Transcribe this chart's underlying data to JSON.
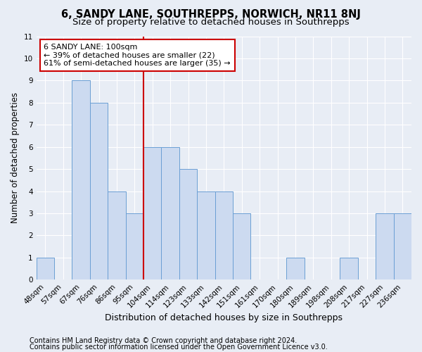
{
  "title": "6, SANDY LANE, SOUTHREPPS, NORWICH, NR11 8NJ",
  "subtitle": "Size of property relative to detached houses in Southrepps",
  "xlabel": "Distribution of detached houses by size in Southrepps",
  "ylabel": "Number of detached properties",
  "categories": [
    "48sqm",
    "57sqm",
    "67sqm",
    "76sqm",
    "86sqm",
    "95sqm",
    "104sqm",
    "114sqm",
    "123sqm",
    "133sqm",
    "142sqm",
    "151sqm",
    "161sqm",
    "170sqm",
    "180sqm",
    "189sqm",
    "198sqm",
    "208sqm",
    "217sqm",
    "227sqm",
    "236sqm"
  ],
  "values": [
    1,
    0,
    9,
    8,
    4,
    3,
    6,
    6,
    5,
    4,
    4,
    3,
    0,
    0,
    1,
    0,
    0,
    1,
    0,
    3,
    3
  ],
  "bar_color": "#ccdaf0",
  "bar_edge_color": "#6b9fd4",
  "reference_line_color": "#cc0000",
  "annotation_line1": "6 SANDY LANE: 100sqm",
  "annotation_line2": "← 39% of detached houses are smaller (22)",
  "annotation_line3": "61% of semi-detached houses are larger (35) →",
  "annotation_box_color": "#ffffff",
  "annotation_box_edge_color": "#cc0000",
  "ylim": [
    0,
    11
  ],
  "yticks": [
    0,
    1,
    2,
    3,
    4,
    5,
    6,
    7,
    8,
    9,
    10,
    11
  ],
  "footer_line1": "Contains HM Land Registry data © Crown copyright and database right 2024.",
  "footer_line2": "Contains public sector information licensed under the Open Government Licence v3.0.",
  "background_color": "#e8edf5",
  "plot_background_color": "#e8edf5",
  "grid_color": "#ffffff",
  "title_fontsize": 10.5,
  "subtitle_fontsize": 9.5,
  "xlabel_fontsize": 9,
  "ylabel_fontsize": 8.5,
  "tick_fontsize": 7.5,
  "annotation_fontsize": 8,
  "footer_fontsize": 7
}
